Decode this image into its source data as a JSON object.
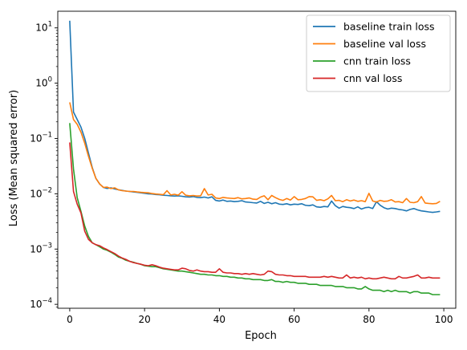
{
  "chart_data": {
    "type": "line",
    "title": "",
    "xlabel": "Epoch",
    "ylabel": "Loss (Mean squared error)",
    "xlim": [
      -3.2,
      103.2
    ],
    "ylim": [
      8.5e-05,
      20
    ],
    "yscale": "log",
    "x_ticks": [
      0,
      20,
      40,
      60,
      80,
      100
    ],
    "y_ticks": [
      {
        "value": 0.0001,
        "base": "10",
        "exp": "−4"
      },
      {
        "value": 0.001,
        "base": "10",
        "exp": "−3"
      },
      {
        "value": 0.01,
        "base": "10",
        "exp": "−2"
      },
      {
        "value": 0.1,
        "base": "10",
        "exp": "−1"
      },
      {
        "value": 1,
        "base": "10",
        "exp": "0"
      },
      {
        "value": 10,
        "base": "10",
        "exp": "1"
      }
    ],
    "grid": false,
    "legend_position": "top-right",
    "x": [
      0,
      1,
      2,
      3,
      4,
      5,
      6,
      7,
      8,
      9,
      10,
      11,
      12,
      13,
      14,
      15,
      16,
      17,
      18,
      19,
      20,
      21,
      22,
      23,
      24,
      25,
      26,
      27,
      28,
      29,
      30,
      31,
      32,
      33,
      34,
      35,
      36,
      37,
      38,
      39,
      40,
      41,
      42,
      43,
      44,
      45,
      46,
      47,
      48,
      49,
      50,
      51,
      52,
      53,
      54,
      55,
      56,
      57,
      58,
      59,
      60,
      61,
      62,
      63,
      64,
      65,
      66,
      67,
      68,
      69,
      70,
      71,
      72,
      73,
      74,
      75,
      76,
      77,
      78,
      79,
      80,
      81,
      82,
      83,
      84,
      85,
      86,
      87,
      88,
      89,
      90,
      91,
      92,
      93,
      94,
      95,
      96,
      97,
      98,
      99
    ],
    "series": [
      {
        "name": "baseline train loss",
        "color": "#1f77b4",
        "values": [
          13.5,
          0.3,
          0.22,
          0.16,
          0.1,
          0.055,
          0.03,
          0.019,
          0.015,
          0.013,
          0.0125,
          0.0128,
          0.0122,
          0.0118,
          0.0115,
          0.0112,
          0.011,
          0.0108,
          0.0106,
          0.0104,
          0.0102,
          0.01,
          0.0099,
          0.0097,
          0.0096,
          0.0094,
          0.0093,
          0.0092,
          0.0091,
          0.0092,
          0.009,
          0.0088,
          0.0087,
          0.0089,
          0.0086,
          0.0085,
          0.0087,
          0.0084,
          0.0088,
          0.0076,
          0.0074,
          0.0077,
          0.0073,
          0.0074,
          0.0072,
          0.0073,
          0.0075,
          0.0071,
          0.007,
          0.0069,
          0.0068,
          0.0073,
          0.0067,
          0.007,
          0.0066,
          0.0069,
          0.0065,
          0.0064,
          0.0066,
          0.0063,
          0.0065,
          0.0064,
          0.0066,
          0.0062,
          0.0061,
          0.0063,
          0.0058,
          0.0057,
          0.0059,
          0.0058,
          0.0074,
          0.0061,
          0.0055,
          0.0059,
          0.0057,
          0.0056,
          0.0054,
          0.0058,
          0.0053,
          0.0056,
          0.0057,
          0.0054,
          0.0072,
          0.0062,
          0.0056,
          0.0053,
          0.0055,
          0.0054,
          0.0052,
          0.0051,
          0.0049,
          0.0052,
          0.0054,
          0.0051,
          0.0049,
          0.0048,
          0.0047,
          0.0046,
          0.0047,
          0.0048
        ]
      },
      {
        "name": "baseline val loss",
        "color": "#ff7f0e",
        "values": [
          0.45,
          0.22,
          0.18,
          0.13,
          0.082,
          0.048,
          0.029,
          0.019,
          0.015,
          0.013,
          0.0132,
          0.0124,
          0.0128,
          0.0118,
          0.0114,
          0.0112,
          0.011,
          0.011,
          0.0108,
          0.0106,
          0.0105,
          0.0104,
          0.0101,
          0.0099,
          0.0098,
          0.0096,
          0.0114,
          0.0095,
          0.0098,
          0.0094,
          0.0109,
          0.0094,
          0.0092,
          0.0093,
          0.0091,
          0.0092,
          0.0124,
          0.0095,
          0.0098,
          0.0084,
          0.0082,
          0.0086,
          0.0084,
          0.0083,
          0.0082,
          0.0085,
          0.0081,
          0.0082,
          0.0084,
          0.008,
          0.0079,
          0.0087,
          0.0092,
          0.0078,
          0.0093,
          0.0085,
          0.0079,
          0.0076,
          0.0082,
          0.0077,
          0.0089,
          0.0078,
          0.0079,
          0.0082,
          0.0089,
          0.0088,
          0.0076,
          0.0078,
          0.0075,
          0.0081,
          0.0093,
          0.0075,
          0.0076,
          0.0072,
          0.0078,
          0.0074,
          0.0077,
          0.0073,
          0.0075,
          0.0072,
          0.0102,
          0.0074,
          0.0071,
          0.0076,
          0.0073,
          0.0074,
          0.0078,
          0.0071,
          0.0072,
          0.0069,
          0.0082,
          0.007,
          0.0069,
          0.0072,
          0.0089,
          0.0068,
          0.0067,
          0.0066,
          0.0067,
          0.0073
        ]
      },
      {
        "name": "cnn train loss",
        "color": "#2ca02c",
        "values": [
          0.19,
          0.028,
          0.0085,
          0.0048,
          0.0026,
          0.0017,
          0.0013,
          0.0012,
          0.0011,
          0.001,
          0.00095,
          0.00088,
          0.0008,
          0.00072,
          0.00068,
          0.00063,
          0.0006,
          0.00058,
          0.00055,
          0.00053,
          0.0005,
          0.00049,
          0.00048,
          0.00048,
          0.00046,
          0.00044,
          0.00043,
          0.00042,
          0.00041,
          0.0004,
          0.0004,
          0.00039,
          0.00038,
          0.00037,
          0.00036,
          0.00035,
          0.00035,
          0.00034,
          0.00034,
          0.00033,
          0.00033,
          0.00032,
          0.00032,
          0.00031,
          0.00031,
          0.0003,
          0.0003,
          0.00029,
          0.00029,
          0.00028,
          0.00028,
          0.00028,
          0.00027,
          0.00027,
          0.00028,
          0.00026,
          0.00026,
          0.00025,
          0.00026,
          0.00025,
          0.00025,
          0.00024,
          0.00024,
          0.00024,
          0.00023,
          0.00023,
          0.00023,
          0.00022,
          0.00022,
          0.00022,
          0.00022,
          0.00021,
          0.00021,
          0.00021,
          0.0002,
          0.0002,
          0.0002,
          0.00019,
          0.00019,
          0.00021,
          0.00019,
          0.00018,
          0.00018,
          0.00018,
          0.00017,
          0.00018,
          0.00017,
          0.00018,
          0.00017,
          0.00017,
          0.00017,
          0.00016,
          0.00017,
          0.00017,
          0.00016,
          0.00016,
          0.00016,
          0.00015,
          0.00015,
          0.00015
        ]
      },
      {
        "name": "cnn val loss",
        "color": "#d62728",
        "values": [
          0.085,
          0.011,
          0.0065,
          0.0045,
          0.0021,
          0.0015,
          0.0013,
          0.0012,
          0.00115,
          0.00105,
          0.00098,
          0.0009,
          0.00083,
          0.00075,
          0.00069,
          0.00065,
          0.0006,
          0.00057,
          0.00055,
          0.00053,
          0.00051,
          0.0005,
          0.00052,
          0.0005,
          0.00047,
          0.00045,
          0.00044,
          0.00043,
          0.00042,
          0.00042,
          0.00045,
          0.00044,
          0.00041,
          0.0004,
          0.00042,
          0.0004,
          0.00039,
          0.00039,
          0.00038,
          0.00038,
          0.00044,
          0.00038,
          0.00037,
          0.00037,
          0.00036,
          0.00036,
          0.00035,
          0.00036,
          0.00035,
          0.00036,
          0.00035,
          0.00034,
          0.00035,
          0.0004,
          0.00039,
          0.00035,
          0.00034,
          0.00034,
          0.00033,
          0.00033,
          0.00032,
          0.00032,
          0.00032,
          0.00032,
          0.00031,
          0.00031,
          0.00031,
          0.00031,
          0.00032,
          0.00031,
          0.00032,
          0.00031,
          0.0003,
          0.0003,
          0.00034,
          0.0003,
          0.00031,
          0.0003,
          0.00031,
          0.00029,
          0.0003,
          0.00029,
          0.00029,
          0.0003,
          0.00031,
          0.0003,
          0.00029,
          0.00029,
          0.00032,
          0.0003,
          0.0003,
          0.00031,
          0.00032,
          0.00034,
          0.0003,
          0.0003,
          0.00031,
          0.0003,
          0.0003,
          0.0003
        ]
      }
    ]
  }
}
